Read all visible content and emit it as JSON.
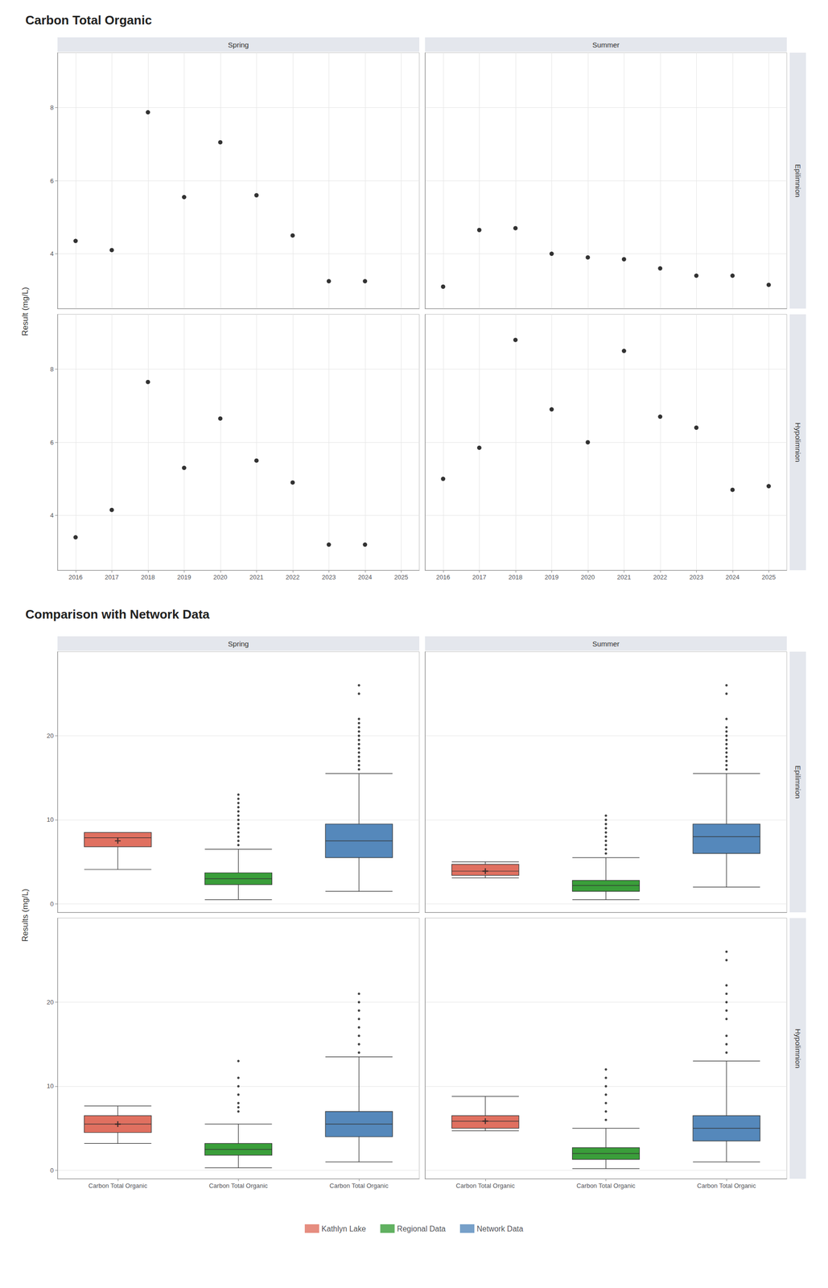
{
  "chart_data": [
    {
      "type": "scatter",
      "title": "Carbon Total Organic",
      "ylabel": "Result (mg/L)",
      "facet_columns": [
        "Spring",
        "Summer"
      ],
      "facet_rows": [
        "Epilimnion",
        "Hypolimnion"
      ],
      "color": "#000000",
      "xlim": [
        2015.5,
        2025.5
      ],
      "xticks": [
        2016,
        2017,
        2018,
        2019,
        2020,
        2021,
        2022,
        2023,
        2024,
        2025
      ],
      "ylim": [
        2.5,
        9.5
      ],
      "yticks": [
        4,
        6,
        8
      ],
      "grid": true,
      "panels": [
        {
          "column": "Spring",
          "row": "Epilimnion",
          "x": [
            2016,
            2017,
            2018,
            2019,
            2020,
            2021,
            2022,
            2023,
            2024
          ],
          "y": [
            4.35,
            4.1,
            7.87,
            5.55,
            7.05,
            5.6,
            4.5,
            3.25,
            3.25
          ]
        },
        {
          "column": "Spring",
          "row": "Hypolimnion",
          "x": [
            2016,
            2017,
            2018,
            2019,
            2020,
            2021,
            2022,
            2023,
            2024
          ],
          "y": [
            3.4,
            4.15,
            7.65,
            5.3,
            6.65,
            5.5,
            4.9,
            3.2,
            3.2
          ]
        },
        {
          "column": "Summer",
          "row": "Epilimnion",
          "x": [
            2016,
            2017,
            2018,
            2019,
            2020,
            2021,
            2022,
            2023,
            2024,
            2025
          ],
          "y": [
            3.1,
            4.65,
            4.7,
            4.0,
            3.9,
            3.85,
            3.6,
            3.4,
            3.4,
            3.15
          ]
        },
        {
          "column": "Summer",
          "row": "Hypolimnion",
          "x": [
            2016,
            2017,
            2018,
            2019,
            2020,
            2021,
            2022,
            2023,
            2024,
            2025
          ],
          "y": [
            5.0,
            5.85,
            8.8,
            6.9,
            6.0,
            8.5,
            6.7,
            6.4,
            4.7,
            4.8
          ]
        }
      ]
    },
    {
      "type": "box",
      "title": "Comparison with Network Data",
      "ylabel": "Results (mg/L)",
      "facet_columns": [
        "Spring",
        "Summer"
      ],
      "facet_rows": [
        "Epilimnion",
        "Hypolimnion"
      ],
      "categories": [
        "Carbon Total Organic",
        "Carbon Total Organic",
        "Carbon Total Organic"
      ],
      "ylim": [
        -1,
        30
      ],
      "yticks": [
        0,
        10,
        20
      ],
      "grid": true,
      "legend": "bottom",
      "series": [
        {
          "name": "Kathlyn Lake",
          "color": "#e07060",
          "panels": [
            {
              "column": "Spring",
              "row": "Epilimnion",
              "median": 7.87,
              "q1": 6.8,
              "q3": 8.5,
              "whislo": 4.1,
              "whishi": 8.5,
              "fliers": [],
              "mean": 7.5
            },
            {
              "column": "Spring",
              "row": "Hypolimnion",
              "median": 5.5,
              "q1": 4.5,
              "q3": 6.5,
              "whislo": 3.2,
              "whishi": 7.65,
              "fliers": [],
              "mean": 5.5
            },
            {
              "column": "Summer",
              "row": "Epilimnion",
              "median": 3.9,
              "q1": 3.4,
              "q3": 4.7,
              "whislo": 3.1,
              "whishi": 5.0,
              "fliers": [],
              "mean": 3.9
            },
            {
              "column": "Summer",
              "row": "Hypolimnion",
              "median": 5.85,
              "q1": 5.0,
              "q3": 6.5,
              "whislo": 4.7,
              "whishi": 8.8,
              "fliers": [],
              "mean": 5.85
            }
          ]
        },
        {
          "name": "Regional Data",
          "color": "#3a9e3a",
          "panels": [
            {
              "column": "Spring",
              "row": "Epilimnion",
              "median": 3.0,
              "q1": 2.3,
              "q3": 3.7,
              "whislo": 0.5,
              "whishi": 6.5,
              "fliers": [
                7.0,
                7.5,
                8.0,
                8.5,
                9.0,
                9.5,
                10.0,
                10.5,
                11.0,
                11.5,
                12.0,
                12.5,
                13.0
              ]
            },
            {
              "column": "Spring",
              "row": "Hypolimnion",
              "median": 2.5,
              "q1": 1.8,
              "q3": 3.2,
              "whislo": 0.3,
              "whishi": 5.5,
              "fliers": [
                7.0,
                7.5,
                8.0,
                9.0,
                10.0,
                11.0,
                13.0
              ]
            },
            {
              "column": "Summer",
              "row": "Epilimnion",
              "median": 2.2,
              "q1": 1.5,
              "q3": 2.8,
              "whislo": 0.5,
              "whishi": 5.5,
              "fliers": [
                6.0,
                6.5,
                7.0,
                7.5,
                8.0,
                8.5,
                9.0,
                9.5,
                10.0,
                10.5
              ]
            },
            {
              "column": "Summer",
              "row": "Hypolimnion",
              "median": 2.0,
              "q1": 1.3,
              "q3": 2.7,
              "whislo": 0.2,
              "whishi": 5.0,
              "fliers": [
                6.0,
                7.0,
                8.0,
                9.0,
                10.0,
                11.0,
                12.0
              ]
            }
          ]
        },
        {
          "name": "Network Data",
          "color": "#5588bb",
          "panels": [
            {
              "column": "Spring",
              "row": "Epilimnion",
              "median": 7.5,
              "q1": 5.5,
              "q3": 9.5,
              "whislo": 1.5,
              "whishi": 15.5,
              "fliers": [
                16.0,
                16.5,
                17.0,
                17.5,
                18.0,
                18.5,
                19.0,
                19.5,
                20.0,
                20.5,
                21.0,
                21.5,
                22.0,
                25.0,
                26.0
              ]
            },
            {
              "column": "Spring",
              "row": "Hypolimnion",
              "median": 5.5,
              "q1": 4.0,
              "q3": 7.0,
              "whislo": 1.0,
              "whishi": 13.5,
              "fliers": [
                14.0,
                15.0,
                16.0,
                17.0,
                18.0,
                19.0,
                20.0,
                21.0
              ]
            },
            {
              "column": "Summer",
              "row": "Epilimnion",
              "median": 8.0,
              "q1": 6.0,
              "q3": 9.5,
              "whislo": 2.0,
              "whishi": 15.5,
              "fliers": [
                16.0,
                16.5,
                17.0,
                17.5,
                18.0,
                18.5,
                19.0,
                19.5,
                20.0,
                20.5,
                21.0,
                22.0,
                25.0,
                26.0
              ]
            },
            {
              "column": "Summer",
              "row": "Hypolimnion",
              "median": 5.0,
              "q1": 3.5,
              "q3": 6.5,
              "whislo": 1.0,
              "whishi": 13.0,
              "fliers": [
                14.0,
                15.0,
                16.0,
                18.0,
                19.0,
                20.0,
                21.0,
                22.0,
                25.0,
                26.0
              ]
            }
          ]
        }
      ]
    }
  ]
}
